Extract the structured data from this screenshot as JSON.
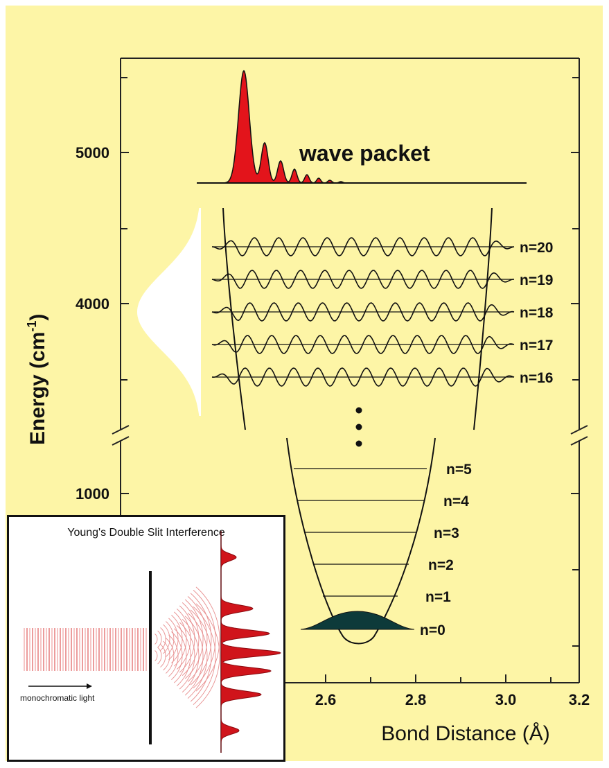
{
  "diagram": {
    "y_axis": {
      "label_main": "Energy (cm",
      "label_sup": "-1",
      "label_close": ")",
      "ticks": [
        "5000",
        "4000",
        "1000"
      ]
    },
    "x_axis": {
      "label": "Bond Distance (Å)",
      "ticks": [
        "2.6",
        "2.8",
        "3.0",
        "3.2"
      ]
    },
    "wave_packet_label": "wave packet",
    "upper_levels": [
      "n=20",
      "n=19",
      "n=18",
      "n=17",
      "n=16"
    ],
    "lower_levels": [
      "n=5",
      "n=4",
      "n=3",
      "n=2",
      "n=1",
      "n=0"
    ],
    "colors": {
      "background": "#fdf5a6",
      "packet": "#e3141b",
      "ground_state": "#0d3a3a"
    }
  },
  "inset": {
    "title": "Young's Double Slit Interference",
    "light_label": "monochromatic light"
  }
}
